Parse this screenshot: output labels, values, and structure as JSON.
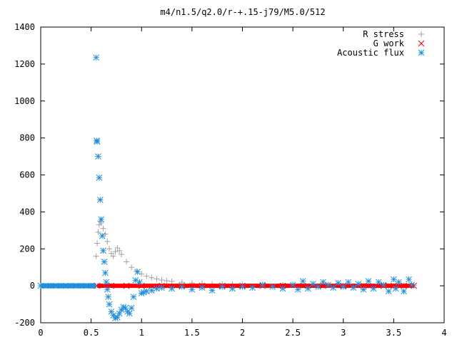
{
  "chart_data": {
    "type": "scatter",
    "title": "m4/n1.5/q2.0/r-+.15-j79/M5.0/512",
    "xlabel": "",
    "ylabel": "",
    "xlim": [
      0,
      4
    ],
    "ylim": [
      -200,
      1400
    ],
    "x_ticks": [
      "0",
      "0.5",
      "1",
      "1.5",
      "2",
      "2.5",
      "3",
      "3.5",
      "4"
    ],
    "y_ticks": [
      "-200",
      "0",
      "200",
      "400",
      "600",
      "800",
      "1000",
      "1200",
      "1400"
    ],
    "grid": false,
    "legend_position": "top-right",
    "series": [
      {
        "name": "R stress",
        "color": "#a0a0a0",
        "marker": "plus",
        "x": [
          0.55,
          0.56,
          0.57,
          0.58,
          0.59,
          0.6,
          0.62,
          0.64,
          0.66,
          0.68,
          0.7,
          0.72,
          0.74,
          0.76,
          0.78,
          0.8,
          0.85,
          0.9,
          0.95,
          1.0,
          1.05,
          1.1,
          1.15,
          1.2,
          1.25,
          1.3,
          1.4,
          1.5,
          1.6,
          1.7,
          1.8,
          1.9,
          2.0,
          2.2,
          2.4,
          2.6,
          2.8,
          3.0,
          3.2,
          3.4,
          3.6,
          3.7
        ],
        "y": [
          160,
          230,
          290,
          330,
          350,
          340,
          310,
          280,
          240,
          200,
          175,
          160,
          185,
          205,
          190,
          170,
          130,
          100,
          80,
          65,
          52,
          44,
          37,
          31,
          27,
          24,
          19,
          15,
          12,
          10,
          9,
          8,
          7,
          6,
          5,
          4,
          4,
          3,
          3,
          3,
          2,
          2
        ]
      },
      {
        "name": "G work",
        "color": "#ff0000",
        "marker": "cross",
        "x": [
          0.56,
          0.7,
          0.85,
          1.0,
          1.2,
          1.4,
          1.6,
          1.8,
          2.0,
          2.2,
          2.4,
          2.6,
          2.8,
          3.0,
          3.2,
          3.4,
          3.5,
          3.6,
          3.7
        ],
        "y": [
          0,
          0,
          0,
          0,
          0,
          0,
          0,
          0,
          0,
          0,
          0,
          0,
          0,
          0,
          0,
          0,
          0,
          0,
          0
        ]
      },
      {
        "name": "Acoustic flux",
        "color": "#1e8fe0",
        "marker": "star",
        "x": [
          0.0,
          0.1,
          0.2,
          0.3,
          0.4,
          0.5,
          0.55,
          0.555,
          0.56,
          0.57,
          0.58,
          0.59,
          0.6,
          0.61,
          0.62,
          0.63,
          0.64,
          0.65,
          0.66,
          0.67,
          0.68,
          0.7,
          0.72,
          0.74,
          0.76,
          0.78,
          0.8,
          0.82,
          0.84,
          0.86,
          0.88,
          0.9,
          0.92,
          0.94,
          0.96,
          0.98,
          1.0,
          1.02,
          1.05,
          1.1,
          1.15,
          1.2,
          1.3,
          1.4,
          1.5,
          1.6,
          1.7,
          1.8,
          1.9,
          2.0,
          2.1,
          2.2,
          2.3,
          2.4,
          2.5,
          2.55,
          2.6,
          2.65,
          2.7,
          2.75,
          2.8,
          2.85,
          2.9,
          2.95,
          3.0,
          3.05,
          3.1,
          3.15,
          3.2,
          3.25,
          3.3,
          3.35,
          3.4,
          3.45,
          3.5,
          3.52,
          3.55,
          3.6,
          3.65,
          3.68
        ],
        "y": [
          0,
          0,
          0,
          0,
          0,
          0,
          1235,
          785,
          780,
          700,
          585,
          465,
          360,
          270,
          190,
          130,
          70,
          20,
          -20,
          -60,
          -100,
          -140,
          -160,
          -175,
          -170,
          -150,
          -130,
          -115,
          -120,
          -140,
          -150,
          -120,
          -60,
          30,
          75,
          20,
          -40,
          -35,
          -30,
          -25,
          -15,
          -10,
          -15,
          -5,
          -20,
          -10,
          -25,
          -5,
          -15,
          -5,
          -10,
          5,
          -5,
          -15,
          5,
          -20,
          25,
          -15,
          10,
          -5,
          20,
          5,
          -10,
          15,
          -5,
          20,
          -10,
          10,
          -20,
          25,
          -15,
          20,
          5,
          -30,
          35,
          -15,
          20,
          -30,
          35,
          5
        ]
      }
    ]
  }
}
